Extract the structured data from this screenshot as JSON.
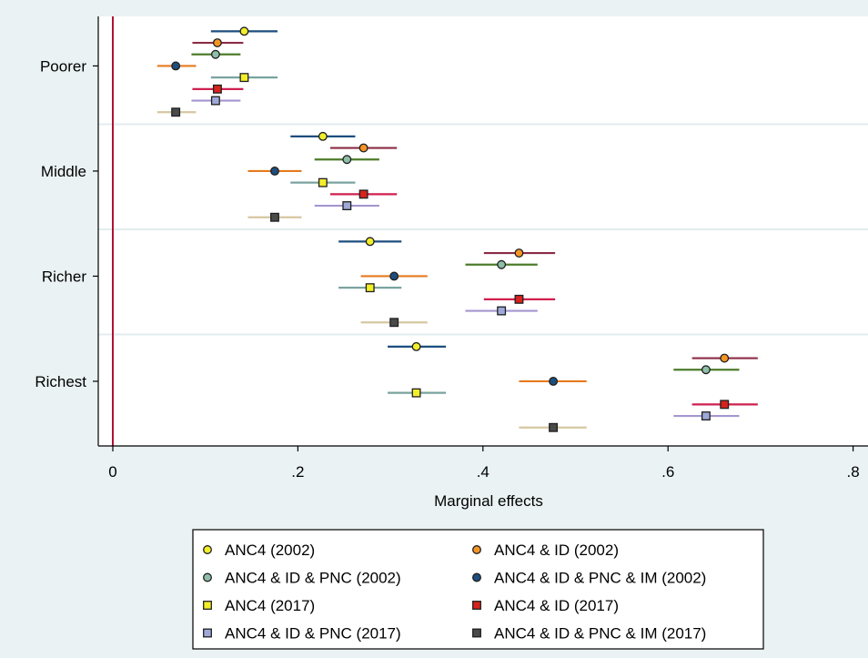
{
  "chart_data": {
    "type": "coefficient-plot",
    "title": "",
    "xlabel": "Marginal effects",
    "ylabel": "",
    "xlim": [
      -0.017,
      0.8
    ],
    "x_ticks": [
      {
        "value": 0,
        "label": "0"
      },
      {
        "value": 0.2,
        "label": ".2"
      },
      {
        "value": 0.4,
        "label": ".4"
      },
      {
        "value": 0.6,
        "label": ".6"
      },
      {
        "value": 0.8,
        "label": ".8"
      }
    ],
    "reference_line": {
      "x": 0,
      "color": "#b21234"
    },
    "grid": "horizontal separators between groups",
    "categories": [
      "Poorer",
      "Middle",
      "Richer",
      "Richest"
    ],
    "series": [
      {
        "name": "ANC4 (2002)",
        "marker": "circle",
        "fill": "#f2ee2a",
        "line": "#1d4e7e",
        "points": [
          {
            "estimate": 0.142,
            "low": 0.106,
            "high": 0.178
          },
          {
            "estimate": 0.227,
            "low": 0.192,
            "high": 0.262
          },
          {
            "estimate": 0.278,
            "low": 0.244,
            "high": 0.312
          },
          {
            "estimate": 0.328,
            "low": 0.297,
            "high": 0.36
          }
        ]
      },
      {
        "name": "ANC4 & ID (2002)",
        "marker": "circle",
        "fill": "#f29525",
        "line": "#8c2c46",
        "points": [
          {
            "estimate": 0.113,
            "low": 0.086,
            "high": 0.141
          },
          {
            "estimate": 0.271,
            "low": 0.235,
            "high": 0.307
          },
          {
            "estimate": 0.439,
            "low": 0.401,
            "high": 0.478
          },
          {
            "estimate": 0.661,
            "low": 0.626,
            "high": 0.697
          }
        ]
      },
      {
        "name": "ANC4 & ID & PNC (2002)",
        "marker": "circle",
        "fill": "#8fbea8",
        "line": "#4d7b2a",
        "points": [
          {
            "estimate": 0.111,
            "low": 0.085,
            "high": 0.138
          },
          {
            "estimate": 0.253,
            "low": 0.218,
            "high": 0.288
          },
          {
            "estimate": 0.42,
            "low": 0.381,
            "high": 0.459
          },
          {
            "estimate": 0.641,
            "low": 0.606,
            "high": 0.677
          }
        ]
      },
      {
        "name": "ANC4 & ID & PNC & IM (2002)",
        "marker": "circle",
        "fill": "#1d4e7e",
        "line": "#e57a1e",
        "points": [
          {
            "estimate": 0.068,
            "low": 0.048,
            "high": 0.09
          },
          {
            "estimate": 0.175,
            "low": 0.146,
            "high": 0.204
          },
          {
            "estimate": 0.304,
            "low": 0.268,
            "high": 0.34
          },
          {
            "estimate": 0.476,
            "low": 0.439,
            "high": 0.512
          }
        ]
      },
      {
        "name": "ANC4 (2017)",
        "marker": "square",
        "fill": "#f2ee2a",
        "line": "#7aa39f",
        "points": [
          {
            "estimate": 0.142,
            "low": 0.106,
            "high": 0.178
          },
          {
            "estimate": 0.227,
            "low": 0.192,
            "high": 0.262
          },
          {
            "estimate": 0.278,
            "low": 0.244,
            "high": 0.312
          },
          {
            "estimate": 0.328,
            "low": 0.297,
            "high": 0.36
          }
        ]
      },
      {
        "name": "ANC4 & ID (2017)",
        "marker": "square",
        "fill": "#d6231c",
        "line": "#cf1f4f",
        "points": [
          {
            "estimate": 0.113,
            "low": 0.086,
            "high": 0.141
          },
          {
            "estimate": 0.271,
            "low": 0.235,
            "high": 0.307
          },
          {
            "estimate": 0.439,
            "low": 0.401,
            "high": 0.478
          },
          {
            "estimate": 0.661,
            "low": 0.626,
            "high": 0.697
          }
        ]
      },
      {
        "name": "ANC4 & ID & PNC (2017)",
        "marker": "square",
        "fill": "#9fa9d8",
        "line": "#a596d0",
        "points": [
          {
            "estimate": 0.111,
            "low": 0.085,
            "high": 0.138
          },
          {
            "estimate": 0.253,
            "low": 0.218,
            "high": 0.288
          },
          {
            "estimate": 0.42,
            "low": 0.381,
            "high": 0.459
          },
          {
            "estimate": 0.641,
            "low": 0.606,
            "high": 0.677
          }
        ]
      },
      {
        "name": "ANC4 & ID & PNC & IM (2017)",
        "marker": "square",
        "fill": "#4a4a4a",
        "line": "#d6c7a0",
        "points": [
          {
            "estimate": 0.068,
            "low": 0.048,
            "high": 0.09
          },
          {
            "estimate": 0.175,
            "low": 0.146,
            "high": 0.204
          },
          {
            "estimate": 0.304,
            "low": 0.268,
            "high": 0.34
          },
          {
            "estimate": 0.476,
            "low": 0.439,
            "high": 0.512
          }
        ]
      }
    ],
    "legend": {
      "placement": "bottom",
      "columns": 2
    }
  }
}
